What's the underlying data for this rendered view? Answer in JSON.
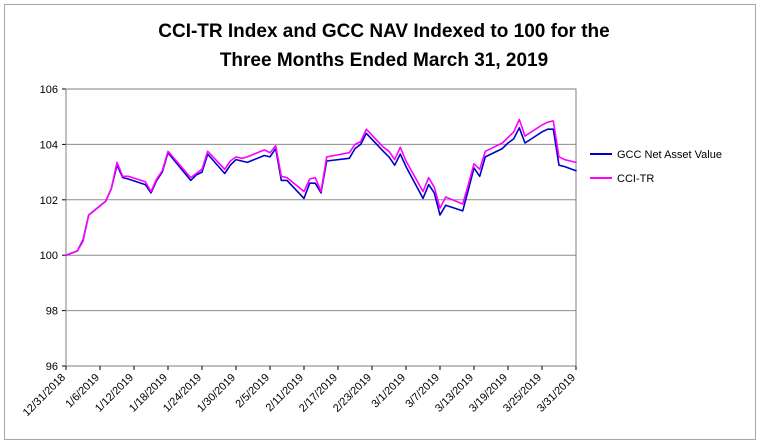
{
  "chart_data": {
    "type": "line",
    "title_lines": [
      "CCI-TR Index and GCC NAV Indexed to 100 for the",
      "Three Months Ended March 31, 2019"
    ],
    "xlabel": "",
    "ylabel": "",
    "ylim": [
      96,
      106
    ],
    "yticks": [
      96,
      98,
      100,
      102,
      104,
      106
    ],
    "x_start": "12/31/2018",
    "x_end": "3/31/2019",
    "xtick_labels": [
      "12/31/2018",
      "1/6/2019",
      "1/12/2019",
      "1/18/2019",
      "1/24/2019",
      "1/30/2019",
      "2/5/2019",
      "2/11/2019",
      "2/17/2019",
      "2/23/2019",
      "3/1/2019",
      "3/7/2019",
      "3/13/2019",
      "3/19/2019",
      "3/25/2019",
      "3/31/2019"
    ],
    "grid": "horizontal",
    "legend_position": "right",
    "series": [
      {
        "name": "GCC Net Asset Value",
        "color": "#0000cc",
        "points": [
          [
            "12/31/2018",
            100.0
          ],
          [
            "1/2/2019",
            100.15
          ],
          [
            "1/3/2019",
            100.55
          ],
          [
            "1/4/2019",
            101.45
          ],
          [
            "1/7/2019",
            101.95
          ],
          [
            "1/8/2019",
            102.4
          ],
          [
            "1/9/2019",
            103.25
          ],
          [
            "1/10/2019",
            102.8
          ],
          [
            "1/11/2019",
            102.75
          ],
          [
            "1/14/2019",
            102.55
          ],
          [
            "1/15/2019",
            102.25
          ],
          [
            "1/16/2019",
            102.7
          ],
          [
            "1/17/2019",
            103.0
          ],
          [
            "1/18/2019",
            103.7
          ],
          [
            "1/22/2019",
            102.7
          ],
          [
            "1/23/2019",
            102.9
          ],
          [
            "1/24/2019",
            103.0
          ],
          [
            "1/25/2019",
            103.65
          ],
          [
            "1/28/2019",
            102.95
          ],
          [
            "1/29/2019",
            103.25
          ],
          [
            "1/30/2019",
            103.45
          ],
          [
            "1/31/2019",
            103.4
          ],
          [
            "2/1/2019",
            103.35
          ],
          [
            "2/4/2019",
            103.6
          ],
          [
            "2/5/2019",
            103.55
          ],
          [
            "2/6/2019",
            103.85
          ],
          [
            "2/7/2019",
            102.7
          ],
          [
            "2/8/2019",
            102.7
          ],
          [
            "2/11/2019",
            102.05
          ],
          [
            "2/12/2019",
            102.6
          ],
          [
            "2/13/2019",
            102.6
          ],
          [
            "2/14/2019",
            102.25
          ],
          [
            "2/15/2019",
            103.4
          ],
          [
            "2/19/2019",
            103.5
          ],
          [
            "2/20/2019",
            103.85
          ],
          [
            "2/21/2019",
            104.0
          ],
          [
            "2/22/2019",
            104.4
          ],
          [
            "2/25/2019",
            103.75
          ],
          [
            "2/26/2019",
            103.55
          ],
          [
            "2/27/2019",
            103.25
          ],
          [
            "2/28/2019",
            103.65
          ],
          [
            "3/1/2019",
            103.2
          ],
          [
            "3/4/2019",
            102.05
          ],
          [
            "3/5/2019",
            102.55
          ],
          [
            "3/6/2019",
            102.25
          ],
          [
            "3/7/2019",
            101.45
          ],
          [
            "3/8/2019",
            101.8
          ],
          [
            "3/11/2019",
            101.6
          ],
          [
            "3/12/2019",
            102.35
          ],
          [
            "3/13/2019",
            103.15
          ],
          [
            "3/14/2019",
            102.85
          ],
          [
            "3/15/2019",
            103.55
          ],
          [
            "3/18/2019",
            103.85
          ],
          [
            "3/19/2019",
            104.05
          ],
          [
            "3/20/2019",
            104.2
          ],
          [
            "3/21/2019",
            104.6
          ],
          [
            "3/22/2019",
            104.05
          ],
          [
            "3/25/2019",
            104.45
          ],
          [
            "3/26/2019",
            104.55
          ],
          [
            "3/27/2019",
            104.55
          ],
          [
            "3/28/2019",
            103.25
          ],
          [
            "3/29/2019",
            103.2
          ],
          [
            "3/31/2019",
            103.05
          ]
        ]
      },
      {
        "name": "CCI-TR",
        "color": "#ff00ff",
        "points": [
          [
            "12/31/2018",
            100.0
          ],
          [
            "1/2/2019",
            100.15
          ],
          [
            "1/3/2019",
            100.5
          ],
          [
            "1/4/2019",
            101.45
          ],
          [
            "1/7/2019",
            101.95
          ],
          [
            "1/8/2019",
            102.4
          ],
          [
            "1/9/2019",
            103.35
          ],
          [
            "1/10/2019",
            102.85
          ],
          [
            "1/11/2019",
            102.85
          ],
          [
            "1/14/2019",
            102.65
          ],
          [
            "1/15/2019",
            102.3
          ],
          [
            "1/16/2019",
            102.75
          ],
          [
            "1/17/2019",
            103.05
          ],
          [
            "1/18/2019",
            103.75
          ],
          [
            "1/22/2019",
            102.8
          ],
          [
            "1/23/2019",
            102.95
          ],
          [
            "1/24/2019",
            103.1
          ],
          [
            "1/25/2019",
            103.75
          ],
          [
            "1/28/2019",
            103.1
          ],
          [
            "1/29/2019",
            103.4
          ],
          [
            "1/30/2019",
            103.55
          ],
          [
            "1/31/2019",
            103.5
          ],
          [
            "2/1/2019",
            103.55
          ],
          [
            "2/4/2019",
            103.8
          ],
          [
            "2/5/2019",
            103.7
          ],
          [
            "2/6/2019",
            103.95
          ],
          [
            "2/7/2019",
            102.85
          ],
          [
            "2/8/2019",
            102.8
          ],
          [
            "2/11/2019",
            102.3
          ],
          [
            "2/12/2019",
            102.75
          ],
          [
            "2/13/2019",
            102.8
          ],
          [
            "2/14/2019",
            102.3
          ],
          [
            "2/15/2019",
            103.55
          ],
          [
            "2/19/2019",
            103.7
          ],
          [
            "2/20/2019",
            104.0
          ],
          [
            "2/21/2019",
            104.1
          ],
          [
            "2/22/2019",
            104.55
          ],
          [
            "2/25/2019",
            103.9
          ],
          [
            "2/26/2019",
            103.75
          ],
          [
            "2/27/2019",
            103.45
          ],
          [
            "2/28/2019",
            103.9
          ],
          [
            "3/1/2019",
            103.4
          ],
          [
            "3/4/2019",
            102.3
          ],
          [
            "3/5/2019",
            102.8
          ],
          [
            "3/6/2019",
            102.45
          ],
          [
            "3/7/2019",
            101.7
          ],
          [
            "3/8/2019",
            102.1
          ],
          [
            "3/11/2019",
            101.85
          ],
          [
            "3/12/2019",
            102.55
          ],
          [
            "3/13/2019",
            103.3
          ],
          [
            "3/14/2019",
            103.1
          ],
          [
            "3/15/2019",
            103.75
          ],
          [
            "3/18/2019",
            104.05
          ],
          [
            "3/19/2019",
            104.25
          ],
          [
            "3/20/2019",
            104.45
          ],
          [
            "3/21/2019",
            104.9
          ],
          [
            "3/22/2019",
            104.3
          ],
          [
            "3/25/2019",
            104.7
          ],
          [
            "3/26/2019",
            104.8
          ],
          [
            "3/27/2019",
            104.85
          ],
          [
            "3/28/2019",
            103.55
          ],
          [
            "3/29/2019",
            103.45
          ],
          [
            "3/31/2019",
            103.35
          ]
        ]
      }
    ]
  }
}
